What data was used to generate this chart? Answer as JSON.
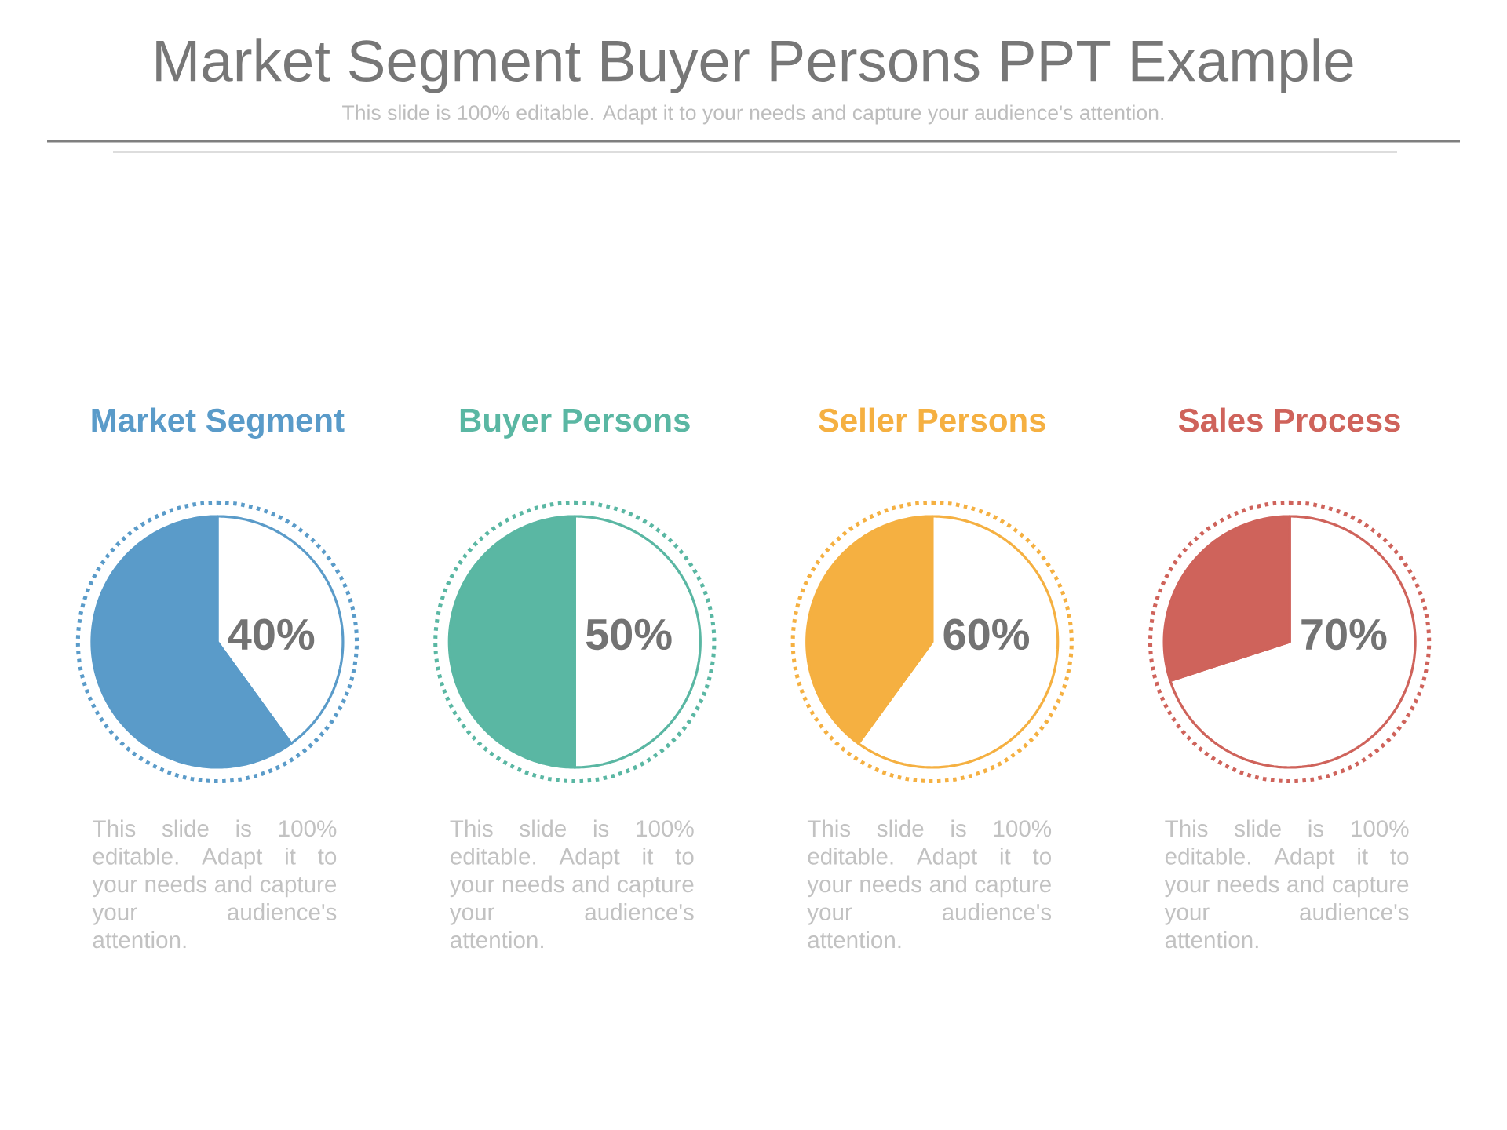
{
  "chart_data": [
    {
      "type": "other",
      "title": "Market Segment Buyer Persons PPT Example",
      "subtitle": "This slide is 100% editable. Adapt it to your needs and capture your audience's attention."
    },
    {
      "type": "pie",
      "title": "Market Segment",
      "categories": [
        null,
        null
      ],
      "values": [
        40,
        60
      ],
      "colors": [
        "#ffffff",
        "#5a9bc9"
      ],
      "value_labels": [
        "40%",
        null
      ],
      "annotations": [
        "This slide is 100% editable. Adapt it to your needs and capture your audience's attention."
      ]
    },
    {
      "type": "pie",
      "title": "Buyer Persons",
      "categories": [
        null,
        null
      ],
      "values": [
        50,
        50
      ],
      "colors": [
        "#ffffff",
        "#5ab7a3"
      ],
      "value_labels": [
        "50%",
        null
      ],
      "annotations": [
        "This slide is 100% editable. Adapt it to your needs and capture your audience's attention."
      ]
    },
    {
      "type": "pie",
      "title": "Seller Persons",
      "categories": [
        null,
        null
      ],
      "values": [
        60,
        40
      ],
      "colors": [
        "#ffffff",
        "#f5b041"
      ],
      "value_labels": [
        "60%",
        null
      ],
      "annotations": [
        "This slide is 100% editable. Adapt it to your needs and capture your audience's attention."
      ]
    },
    {
      "type": "pie",
      "title": "Sales Process",
      "categories": [
        null,
        null
      ],
      "values": [
        70,
        30
      ],
      "colors": [
        "#ffffff",
        "#cf635b"
      ],
      "value_labels": [
        "70%",
        null
      ],
      "annotations": [
        "This slide is 100% editable. Adapt it to your needs and capture your audience's attention."
      ]
    }
  ]
}
